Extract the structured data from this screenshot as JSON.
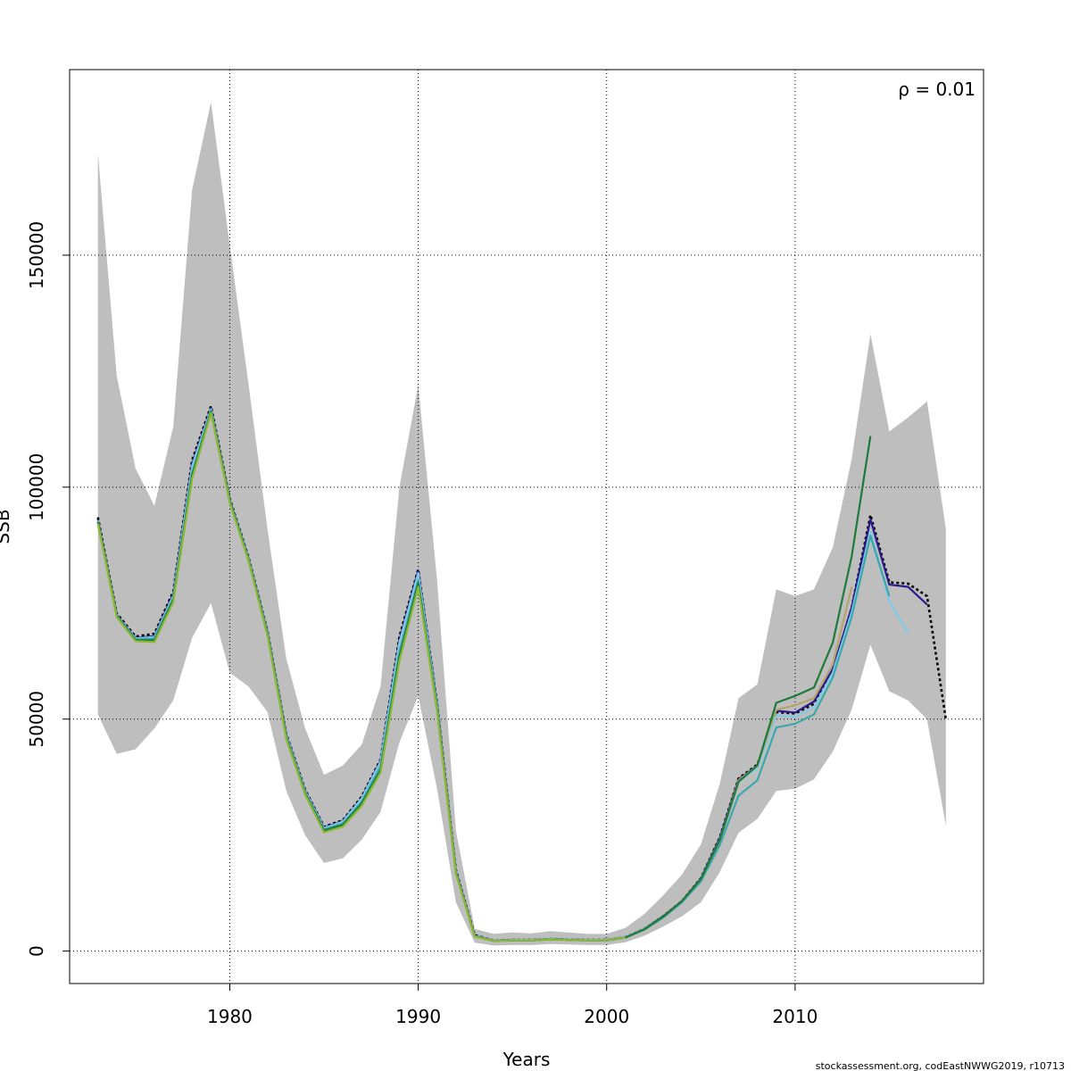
{
  "chart_data": {
    "type": "line",
    "title": "",
    "xlabel": "Years",
    "ylabel": "SSB",
    "xlim": [
      1971.5,
      2020
    ],
    "ylim": [
      -7000,
      190000
    ],
    "x_ticks": [
      1980,
      1990,
      2000,
      2010
    ],
    "y_ticks": [
      0,
      50000,
      100000,
      150000
    ],
    "x_tick_labels": [
      "1980",
      "1990",
      "2000",
      "2010"
    ],
    "y_tick_labels": [
      "0",
      "50000",
      "100000",
      "150000"
    ],
    "grid": true,
    "annotation": "ρ = 0.01",
    "credit": "stockassessment.org, codEastNWWG2019, r10713",
    "band_color": "#bebebe",
    "confidence_band": {
      "x": [
        1973,
        1974,
        1975,
        1976,
        1977,
        1978,
        1979,
        1980,
        1981,
        1982,
        1983,
        1984,
        1985,
        1986,
        1987,
        1988,
        1989,
        1990,
        1991,
        1992,
        1993,
        1994,
        1995,
        1996,
        1997,
        1998,
        1999,
        2000,
        2001,
        2002,
        2003,
        2004,
        2005,
        2006,
        2007,
        2008,
        2009,
        2010,
        2011,
        2012,
        2013,
        2014,
        2015,
        2016,
        2017,
        2018
      ],
      "upper": [
        172000,
        124000,
        104000,
        96000,
        113000,
        164000,
        183000,
        152000,
        122000,
        91000,
        63000,
        48000,
        38000,
        40000,
        44500,
        57000,
        100000,
        122000,
        80000,
        26000,
        4800,
        3700,
        4000,
        3800,
        4300,
        4000,
        3700,
        3700,
        5000,
        8000,
        12000,
        16500,
        23000,
        36000,
        54500,
        57500,
        78000,
        76500,
        78000,
        87000,
        106000,
        133000,
        112000,
        115000,
        118500,
        91000
      ],
      "lower": [
        51000,
        42500,
        43500,
        48000,
        54000,
        67500,
        75000,
        60000,
        57000,
        51500,
        34500,
        25000,
        19000,
        20000,
        24000,
        30000,
        45000,
        55000,
        35000,
        10500,
        1800,
        1200,
        1300,
        1300,
        1500,
        1400,
        1300,
        1300,
        1900,
        3300,
        5300,
        7500,
        10500,
        17000,
        25500,
        28500,
        34500,
        35000,
        37000,
        43000,
        52000,
        66000,
        56000,
        54000,
        50000,
        27000
      ]
    },
    "series": [
      {
        "color": "#000000",
        "dashed": true,
        "x": [
          1973,
          1974,
          1975,
          1976,
          1977,
          1978,
          1979,
          1980,
          1981,
          1982,
          1983,
          1984,
          1985,
          1986,
          1987,
          1988,
          1989,
          1990,
          1991,
          1992,
          1993,
          1994,
          1995,
          1996,
          1997,
          1998,
          1999,
          2000,
          2001,
          2002,
          2003,
          2004,
          2005,
          2006,
          2007,
          2008,
          2009,
          2010,
          2011,
          2012,
          2013,
          2014,
          2015,
          2016,
          2017,
          2018
        ],
        "values": [
          93500,
          72800,
          67800,
          68400,
          77500,
          105800,
          117500,
          97500,
          84800,
          69000,
          46800,
          34800,
          26800,
          28200,
          33300,
          41300,
          67800,
          82300,
          53500,
          17500,
          3400,
          2300,
          2400,
          2400,
          2600,
          2500,
          2400,
          2400,
          3000,
          4800,
          7500,
          10800,
          15700,
          24500,
          37200,
          40200,
          51500,
          51200,
          53300,
          60500,
          74000,
          94000,
          79500,
          79200,
          76500,
          50000
        ]
      },
      {
        "color": "#2a1a8c",
        "dashed": false,
        "x": [
          1973,
          1974,
          1975,
          1976,
          1977,
          1978,
          1979,
          1980,
          1981,
          1982,
          1983,
          1984,
          1985,
          1986,
          1987,
          1988,
          1989,
          1990,
          1991,
          1992,
          1993,
          1994,
          1995,
          1996,
          1997,
          1998,
          1999,
          2000,
          2001,
          2002,
          2003,
          2004,
          2005,
          2006,
          2007,
          2008,
          2009,
          2010,
          2011,
          2012,
          2013,
          2014,
          2015,
          2016,
          2017
        ],
        "values": [
          93000,
          72500,
          67500,
          67900,
          77000,
          105000,
          117000,
          97300,
          84600,
          68800,
          46600,
          34600,
          26600,
          28000,
          33000,
          41000,
          67000,
          82000,
          53300,
          17300,
          3300,
          2300,
          2400,
          2400,
          2600,
          2500,
          2400,
          2400,
          3000,
          4800,
          7500,
          10800,
          15600,
          24300,
          37000,
          40000,
          51800,
          51400,
          53800,
          60800,
          74000,
          93000,
          79000,
          78500,
          74700
        ]
      },
      {
        "color": "#7ecbe8",
        "dashed": false,
        "x": [
          1973,
          1974,
          1975,
          1976,
          1977,
          1978,
          1979,
          1980,
          1981,
          1982,
          1983,
          1984,
          1985,
          1986,
          1987,
          1988,
          1989,
          1990,
          1991,
          1992,
          1993,
          1994,
          1995,
          1996,
          1997,
          1998,
          1999,
          2000,
          2001,
          2002,
          2003,
          2004,
          2005,
          2006,
          2007,
          2008,
          2009,
          2010,
          2011,
          2012,
          2013,
          2014,
          2015,
          2016
        ],
        "values": [
          92800,
          72400,
          67400,
          67700,
          76600,
          104500,
          116800,
          97200,
          84500,
          68700,
          46500,
          34500,
          26500,
          27900,
          32900,
          40800,
          66500,
          81500,
          53000,
          17200,
          3300,
          2300,
          2400,
          2400,
          2600,
          2500,
          2400,
          2400,
          3000,
          4800,
          7400,
          10700,
          15500,
          24000,
          36500,
          39500,
          50800,
          50500,
          52500,
          60000,
          73000,
          90500,
          75500,
          68500
        ]
      },
      {
        "color": "#3aa8ad",
        "dashed": false,
        "x": [
          1973,
          1974,
          1975,
          1976,
          1977,
          1978,
          1979,
          1980,
          1981,
          1982,
          1983,
          1984,
          1985,
          1986,
          1987,
          1988,
          1989,
          1990,
          1991,
          1992,
          1993,
          1994,
          1995,
          1996,
          1997,
          1998,
          1999,
          2000,
          2001,
          2002,
          2003,
          2004,
          2005,
          2006,
          2007,
          2008,
          2009,
          2010,
          2011,
          2012,
          2013,
          2014,
          2015
        ],
        "values": [
          92600,
          72300,
          67200,
          67400,
          76000,
          103000,
          116500,
          97000,
          84300,
          68500,
          46200,
          34200,
          26200,
          27500,
          32200,
          39800,
          64500,
          80000,
          52500,
          17000,
          3200,
          2200,
          2300,
          2300,
          2500,
          2400,
          2300,
          2300,
          2900,
          4600,
          7200,
          10500,
          15000,
          22800,
          33500,
          36800,
          48200,
          49000,
          51000,
          59000,
          72000,
          89500,
          76500
        ]
      },
      {
        "color": "#b5a46b",
        "dashed": false,
        "x": [
          1973,
          1974,
          1975,
          1976,
          1977,
          1978,
          1979,
          1980,
          1981,
          1982,
          1983,
          1984,
          1985,
          1986,
          1987,
          1988,
          1989,
          1990,
          1991,
          1992,
          1993,
          1994,
          1995,
          1996,
          1997,
          1998,
          1999,
          2000,
          2001,
          2002,
          2003,
          2004,
          2005,
          2006,
          2007,
          2008,
          2009,
          2010,
          2011,
          2012,
          2013
        ],
        "values": [
          92300,
          72100,
          66900,
          66800,
          75500,
          102200,
          116200,
          96800,
          84100,
          68200,
          45900,
          33900,
          25800,
          27000,
          31500,
          38800,
          63000,
          79000,
          52000,
          16800,
          3200,
          2200,
          2300,
          2300,
          2500,
          2400,
          2300,
          2300,
          2900,
          4700,
          7400,
          10800,
          15500,
          23800,
          36800,
          40000,
          52000,
          53000,
          54500,
          61800,
          78500
        ]
      },
      {
        "color": "#1e7a38",
        "dashed": false,
        "x": [
          1973,
          1974,
          1975,
          1976,
          1977,
          1978,
          1979,
          1980,
          1981,
          1982,
          1983,
          1984,
          1985,
          1986,
          1987,
          1988,
          1989,
          1990,
          1991,
          1992,
          1993,
          1994,
          1995,
          1996,
          1997,
          1998,
          1999,
          2000,
          2001,
          2002,
          2003,
          2004,
          2005,
          2006,
          2007,
          2008,
          2009,
          2010,
          2011,
          2012,
          2013,
          2014
        ],
        "values": [
          92500,
          72200,
          67000,
          67000,
          75700,
          102500,
          116300,
          96900,
          84200,
          68300,
          46000,
          34000,
          26000,
          27200,
          31800,
          39000,
          63500,
          79300,
          52200,
          16900,
          3200,
          2200,
          2300,
          2300,
          2500,
          2400,
          2300,
          2300,
          2900,
          4700,
          7400,
          10800,
          15500,
          23900,
          36500,
          40000,
          53500,
          55000,
          56800,
          66500,
          85000,
          111000
        ]
      },
      {
        "color": "#8ab832",
        "dashed": false,
        "x": [
          1973,
          1974,
          1975,
          1976,
          1977,
          1978,
          1979,
          1980,
          1981,
          1982,
          1983,
          1984,
          1985,
          1986,
          1987,
          1988,
          1989,
          1990,
          1991,
          1992,
          1993,
          1994,
          1995,
          1996,
          1997,
          1998,
          1999,
          2000,
          2001
        ],
        "values": [
          92200,
          72000,
          66800,
          66600,
          75200,
          101800,
          116000,
          96600,
          84000,
          68000,
          45700,
          33700,
          25600,
          26800,
          31300,
          38500,
          62500,
          78500,
          51800,
          16700,
          3100,
          2200,
          2300,
          2300,
          2500,
          2400,
          2300,
          2300,
          2900
        ]
      }
    ]
  }
}
